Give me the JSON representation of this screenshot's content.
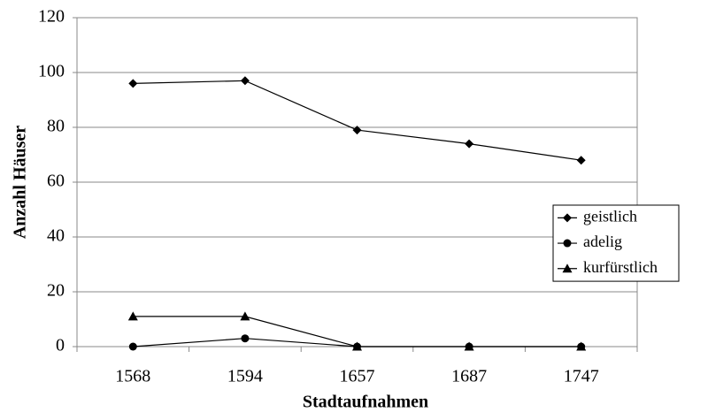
{
  "chart_data": {
    "type": "line",
    "x_label": "Stadtaufnahmen",
    "y_label": "Anzahl Häuser",
    "categories": [
      "1568",
      "1594",
      "1657",
      "1687",
      "1747"
    ],
    "series": [
      {
        "name": "geistlich",
        "color": "#000000",
        "marker": "diamond",
        "values": [
          96,
          97,
          79,
          74,
          68
        ]
      },
      {
        "name": "adelig",
        "color": "#000000",
        "marker": "circle",
        "values": [
          0,
          3,
          0,
          0,
          0
        ]
      },
      {
        "name": "kurfürstlich",
        "color": "#000000",
        "marker": "triangle",
        "values": [
          11,
          11,
          0,
          0,
          0
        ]
      }
    ],
    "ylim": [
      0,
      120
    ],
    "yticks": [
      0,
      20,
      40,
      60,
      80,
      100,
      120
    ],
    "grid": true,
    "legend": "right"
  }
}
